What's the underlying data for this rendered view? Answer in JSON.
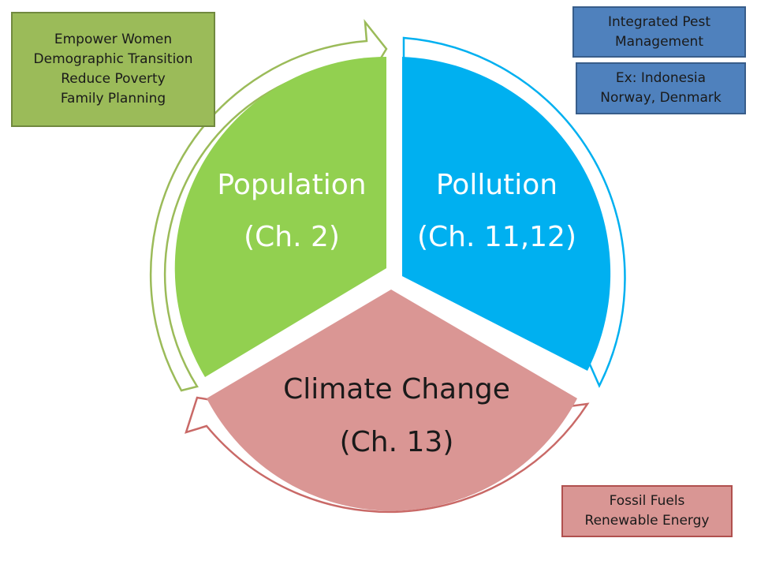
{
  "segments": {
    "population": {
      "label": "Population",
      "chapter": "(Ch. 2)",
      "fill": "#92d050",
      "text_color": "#ffffff"
    },
    "pollution": {
      "label": "Pollution",
      "chapter": "(Ch. 11,12)",
      "fill": "#00b0f0",
      "text_color": "#ffffff"
    },
    "climate": {
      "label": "Climate Change",
      "chapter": "(Ch. 13)",
      "fill": "#da9694",
      "text_color": "#1a1a1a"
    }
  },
  "notes": {
    "population": {
      "lines": [
        "Empower Women",
        "Demographic Transition",
        "Reduce Poverty",
        "Family Planning"
      ]
    },
    "pest": {
      "lines": [
        "Integrated Pest",
        "Management"
      ]
    },
    "example": {
      "lines": [
        "Ex: Indonesia",
        "Norway, Denmark"
      ]
    },
    "climate": {
      "lines": [
        "Fossil Fuels",
        "Renewable Energy"
      ]
    }
  },
  "colors": {
    "population_arrow": "#9bbb59",
    "pollution_arrow": "#00b0f0",
    "climate_arrow": "#c0504d"
  }
}
